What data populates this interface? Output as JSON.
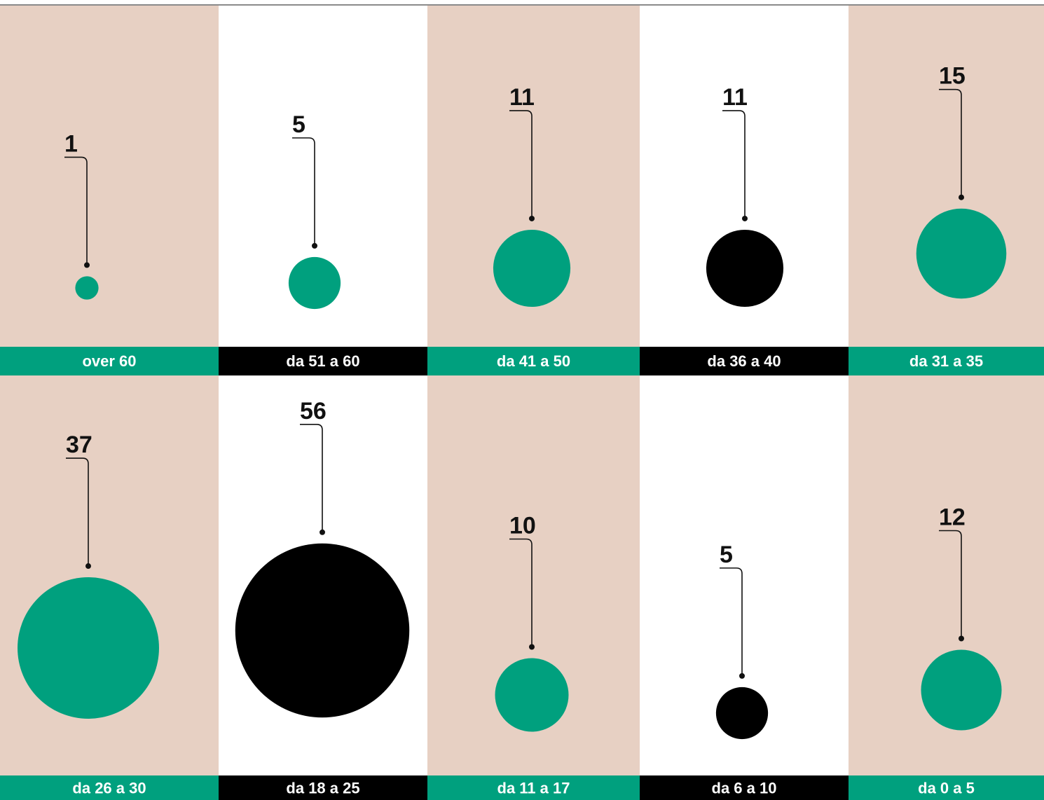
{
  "colors": {
    "panel_beige": "#e7d0c3",
    "panel_white": "#ffffff",
    "green": "#00a07e",
    "black": "#000000",
    "text_dark": "#111111",
    "text_light": "#ffffff",
    "top_rule": "#8a8a8a"
  },
  "chart_data": {
    "type": "bubble",
    "title": "",
    "categories": [
      "over 60",
      "da 51 a 60",
      "da 41 a 50",
      "da 36 a 40",
      "da 31 a 35",
      "da 26 a 30",
      "da 18 a 25",
      "da 11 a 17",
      "da 6 a 10",
      "da 0 a 5"
    ],
    "values": [
      1,
      5,
      11,
      11,
      15,
      37,
      56,
      10,
      5,
      12
    ],
    "bubble_colors": [
      "green",
      "green",
      "green",
      "black",
      "green",
      "green",
      "black",
      "green",
      "black",
      "green"
    ],
    "panel_colors": [
      "beige",
      "white",
      "beige",
      "white",
      "beige",
      "beige",
      "white",
      "beige",
      "white",
      "beige"
    ],
    "label_bar_colors": [
      "green",
      "black",
      "green",
      "black",
      "green",
      "green",
      "black",
      "green",
      "black",
      "green"
    ],
    "grid": false,
    "legend": "none"
  }
}
